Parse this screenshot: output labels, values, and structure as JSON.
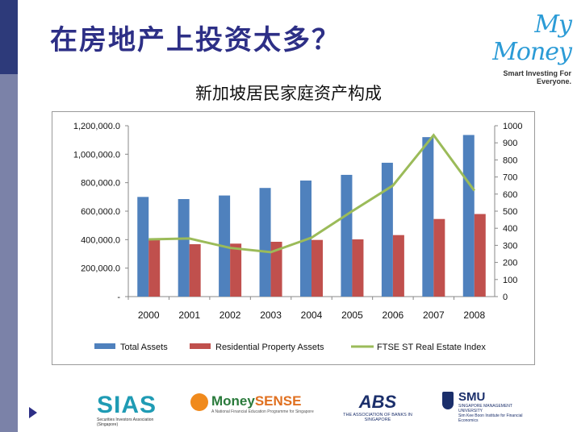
{
  "slide": {
    "title": "在房地产上投资太多？"
  },
  "logo_mymoney": {
    "brand": "My Money",
    "tagline": "Smart Investing For Everyone."
  },
  "footer": {
    "sias": {
      "mark": "SIAS",
      "sub": "Securities Investors Association (Singapore)"
    },
    "moneysense": {
      "mark_a": "Money",
      "mark_b": "SENSE",
      "sub": "A National Financial Education Programme for Singapore"
    },
    "abs": {
      "mark": "ABS",
      "sub": "THE ASSOCIATION OF BANKS IN SINGAPORE"
    },
    "smu": {
      "mark": "SMU",
      "sub_a": "SINGAPORE MANAGEMENT UNIVERSITY",
      "sub_b": "Sim Kee Boon Institute for Financial Economics"
    }
  },
  "chart_data": {
    "type": "bar",
    "title": "新加坡居民家庭资产构成",
    "categories": [
      "2000",
      "2001",
      "2002",
      "2003",
      "2004",
      "2005",
      "2006",
      "2007",
      "2008"
    ],
    "series": [
      {
        "name": "Total Assets",
        "type": "bar",
        "axis": "left",
        "color": "#4f81bd",
        "values": [
          700000,
          685000,
          710000,
          763000,
          815000,
          855000,
          940000,
          1120000,
          1135000
        ]
      },
      {
        "name": "Residential Property Assets",
        "type": "bar",
        "axis": "left",
        "color": "#c0504d",
        "values": [
          400000,
          368000,
          372000,
          385000,
          398000,
          402000,
          432000,
          545000,
          580000
        ]
      },
      {
        "name": "FTSE ST Real Estate Index",
        "type": "line",
        "axis": "right",
        "color": "#9bbb59",
        "values": [
          335,
          340,
          285,
          260,
          345,
          500,
          650,
          945,
          620
        ]
      }
    ],
    "y_left": {
      "min": 0,
      "max": 1200000,
      "ticks": [
        "-",
        "200,000.0",
        "400,000.0",
        "600,000.0",
        "800,000.0",
        "1,000,000.0",
        "1,200,000.0"
      ]
    },
    "y_right": {
      "min": 0,
      "max": 1000,
      "ticks": [
        "0",
        "100",
        "200",
        "300",
        "400",
        "500",
        "600",
        "700",
        "800",
        "900",
        "1000"
      ]
    },
    "legend_position": "bottom",
    "grid": false
  }
}
